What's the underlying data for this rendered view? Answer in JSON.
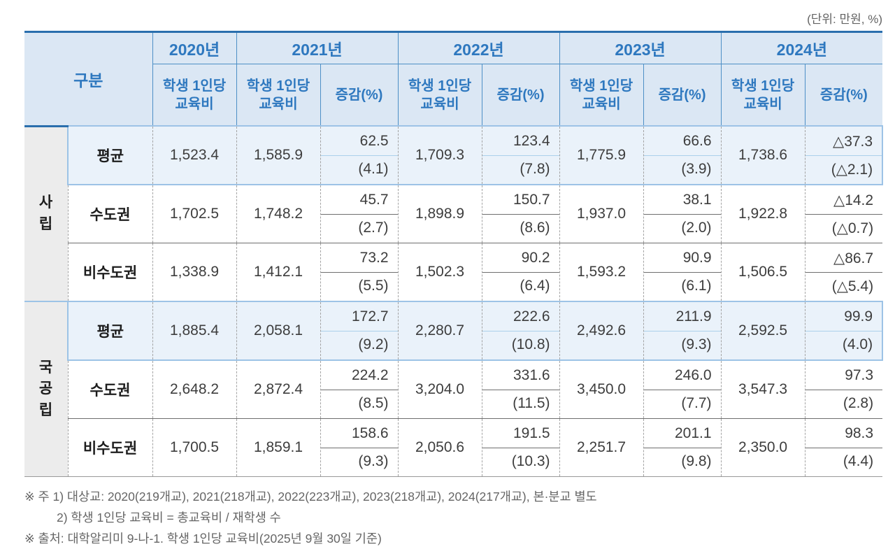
{
  "unit_note": "(단위: 만원, %)",
  "table": {
    "corner_header": "구분",
    "value_header": "학생 1인당 교육비",
    "delta_header": "증감(%)",
    "years": [
      {
        "label": "2020년",
        "has_delta": false
      },
      {
        "label": "2021년",
        "has_delta": true
      },
      {
        "label": "2022년",
        "has_delta": true
      },
      {
        "label": "2023년",
        "has_delta": true
      },
      {
        "label": "2024년",
        "has_delta": true
      }
    ],
    "groups": [
      {
        "label": "사립",
        "rows": [
          {
            "label": "평균",
            "highlight": true,
            "v2020": "1,523.4",
            "years": [
              {
                "value": "1,585.9",
                "delta": "62.5",
                "pct": "(4.1)"
              },
              {
                "value": "1,709.3",
                "delta": "123.4",
                "pct": "(7.8)"
              },
              {
                "value": "1,775.9",
                "delta": "66.6",
                "pct": "(3.9)"
              },
              {
                "value": "1,738.6",
                "delta": "△37.3",
                "pct": "(△2.1)"
              }
            ]
          },
          {
            "label": "수도권",
            "highlight": false,
            "v2020": "1,702.5",
            "years": [
              {
                "value": "1,748.2",
                "delta": "45.7",
                "pct": "(2.7)"
              },
              {
                "value": "1,898.9",
                "delta": "150.7",
                "pct": "(8.6)"
              },
              {
                "value": "1,937.0",
                "delta": "38.1",
                "pct": "(2.0)"
              },
              {
                "value": "1,922.8",
                "delta": "△14.2",
                "pct": "(△0.7)"
              }
            ]
          },
          {
            "label": "비수도권",
            "highlight": false,
            "v2020": "1,338.9",
            "years": [
              {
                "value": "1,412.1",
                "delta": "73.2",
                "pct": "(5.5)"
              },
              {
                "value": "1,502.3",
                "delta": "90.2",
                "pct": "(6.4)"
              },
              {
                "value": "1,593.2",
                "delta": "90.9",
                "pct": "(6.1)"
              },
              {
                "value": "1,506.5",
                "delta": "△86.7",
                "pct": "(△5.4)"
              }
            ]
          }
        ]
      },
      {
        "label": "국공립",
        "rows": [
          {
            "label": "평균",
            "highlight": true,
            "v2020": "1,885.4",
            "years": [
              {
                "value": "2,058.1",
                "delta": "172.7",
                "pct": "(9.2)"
              },
              {
                "value": "2,280.7",
                "delta": "222.6",
                "pct": "(10.8)"
              },
              {
                "value": "2,492.6",
                "delta": "211.9",
                "pct": "(9.3)"
              },
              {
                "value": "2,592.5",
                "delta": "99.9",
                "pct": "(4.0)"
              }
            ]
          },
          {
            "label": "수도권",
            "highlight": false,
            "v2020": "2,648.2",
            "years": [
              {
                "value": "2,872.4",
                "delta": "224.2",
                "pct": "(8.5)"
              },
              {
                "value": "3,204.0",
                "delta": "331.6",
                "pct": "(11.5)"
              },
              {
                "value": "3,450.0",
                "delta": "246.0",
                "pct": "(7.7)"
              },
              {
                "value": "3,547.3",
                "delta": "97.3",
                "pct": "(2.8)"
              }
            ]
          },
          {
            "label": "비수도권",
            "highlight": false,
            "v2020": "1,700.5",
            "years": [
              {
                "value": "1,859.1",
                "delta": "158.6",
                "pct": "(9.3)"
              },
              {
                "value": "2,050.6",
                "delta": "191.5",
                "pct": "(10.3)"
              },
              {
                "value": "2,251.7",
                "delta": "201.1",
                "pct": "(9.8)"
              },
              {
                "value": "2,350.0",
                "delta": "98.3",
                "pct": "(4.4)"
              }
            ]
          }
        ]
      }
    ]
  },
  "notes": [
    {
      "text": "※ 주 1) 대상교: 2020(219개교), 2021(218개교), 2022(223개교), 2023(218개교), 2024(217개교), 본·분교 별도",
      "indent": false
    },
    {
      "text": "2) 학생 1인당 교육비 = 총교육비 / 재학생 수",
      "indent": true
    },
    {
      "text": "※ 출처: 대학알리미 9-나-1. 학생 1인당 교육비(2025년 9월 30일 기준)",
      "indent": false
    }
  ],
  "colors": {
    "header_bg": "#dbe7f4",
    "header_text": "#2e78bf",
    "top_border": "#2a6fad",
    "highlight_bg": "#eaf2fa",
    "highlight_border": "#9dc3e6",
    "group_bg": "#ececec"
  }
}
